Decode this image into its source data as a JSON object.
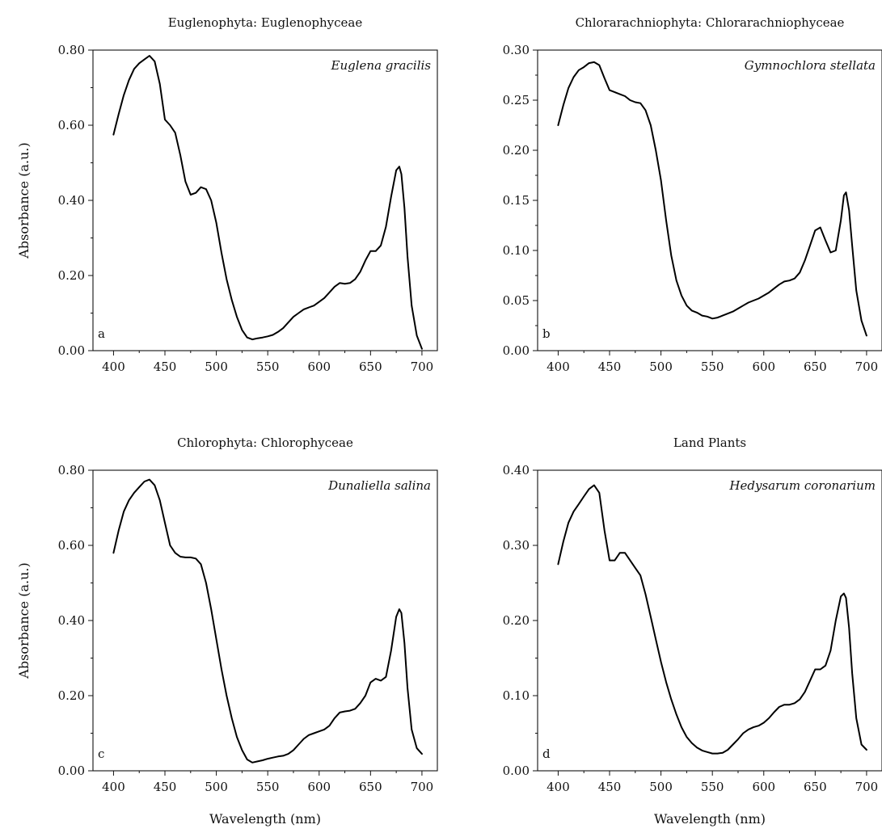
{
  "chart_data": [
    {
      "type": "line",
      "panel": "a",
      "title": "Euglenophyta: Euglenophyceae",
      "species": "Euglena gracilis",
      "xlabel": "",
      "ylabel": "Absorbance (a.u.)",
      "xlim": [
        380,
        715
      ],
      "ylim": [
        0.0,
        0.8
      ],
      "xticks": [
        "400",
        "450",
        "500",
        "550",
        "600",
        "650",
        "700"
      ],
      "yticks": [
        "0.00",
        "0.20",
        "0.40",
        "0.60",
        "0.80"
      ],
      "series": [
        {
          "x": [
            400,
            405,
            410,
            415,
            420,
            425,
            430,
            435,
            440,
            445,
            450,
            455,
            460,
            465,
            470,
            475,
            480,
            485,
            490,
            495,
            500,
            505,
            510,
            515,
            520,
            525,
            530,
            535,
            540,
            545,
            550,
            555,
            560,
            565,
            570,
            575,
            580,
            585,
            590,
            595,
            600,
            605,
            610,
            615,
            620,
            625,
            630,
            635,
            640,
            645,
            650,
            655,
            660,
            665,
            670,
            675,
            678,
            680,
            683,
            686,
            690,
            695,
            700
          ],
          "y": [
            0.575,
            0.63,
            0.68,
            0.72,
            0.75,
            0.765,
            0.775,
            0.785,
            0.77,
            0.71,
            0.615,
            0.6,
            0.58,
            0.52,
            0.45,
            0.415,
            0.42,
            0.435,
            0.43,
            0.4,
            0.34,
            0.26,
            0.19,
            0.135,
            0.09,
            0.055,
            0.035,
            0.03,
            0.033,
            0.035,
            0.038,
            0.042,
            0.05,
            0.06,
            0.075,
            0.09,
            0.1,
            0.11,
            0.115,
            0.12,
            0.13,
            0.14,
            0.155,
            0.17,
            0.18,
            0.178,
            0.18,
            0.19,
            0.21,
            0.24,
            0.265,
            0.265,
            0.28,
            0.33,
            0.41,
            0.48,
            0.49,
            0.47,
            0.38,
            0.25,
            0.12,
            0.04,
            0.005
          ]
        }
      ]
    },
    {
      "type": "line",
      "panel": "b",
      "title": "Chlorarachniophyta: Chlorarachniophyceae",
      "species": "Gymnochlora stellata",
      "xlabel": "",
      "ylabel": "",
      "xlim": [
        380,
        715
      ],
      "ylim": [
        0.0,
        0.3
      ],
      "xticks": [
        "400",
        "450",
        "500",
        "550",
        "600",
        "650",
        "700"
      ],
      "yticks": [
        "0.00",
        "0.05",
        "0.10",
        "0.15",
        "0.20",
        "0.25",
        "0.30"
      ],
      "series": [
        {
          "x": [
            400,
            405,
            410,
            415,
            420,
            425,
            430,
            435,
            440,
            445,
            450,
            455,
            460,
            465,
            470,
            475,
            480,
            485,
            490,
            495,
            500,
            505,
            510,
            515,
            520,
            525,
            530,
            535,
            540,
            545,
            550,
            555,
            560,
            565,
            570,
            575,
            580,
            585,
            590,
            595,
            600,
            605,
            610,
            615,
            620,
            625,
            630,
            635,
            640,
            645,
            650,
            655,
            660,
            665,
            670,
            675,
            678,
            680,
            683,
            686,
            690,
            695,
            700
          ],
          "y": [
            0.225,
            0.245,
            0.262,
            0.273,
            0.28,
            0.283,
            0.287,
            0.288,
            0.285,
            0.272,
            0.26,
            0.258,
            0.256,
            0.254,
            0.25,
            0.248,
            0.247,
            0.24,
            0.225,
            0.2,
            0.17,
            0.13,
            0.095,
            0.07,
            0.055,
            0.045,
            0.04,
            0.038,
            0.035,
            0.034,
            0.032,
            0.033,
            0.035,
            0.037,
            0.039,
            0.042,
            0.045,
            0.048,
            0.05,
            0.052,
            0.055,
            0.058,
            0.062,
            0.066,
            0.069,
            0.07,
            0.072,
            0.078,
            0.09,
            0.105,
            0.12,
            0.123,
            0.11,
            0.098,
            0.1,
            0.13,
            0.155,
            0.158,
            0.14,
            0.105,
            0.06,
            0.03,
            0.015
          ]
        }
      ]
    },
    {
      "type": "line",
      "panel": "c",
      "title": "Chlorophyta: Chlorophyceae",
      "species": "Dunaliella salina",
      "xlabel": "Wavelength (nm)",
      "ylabel": "Absorbance (a.u.)",
      "xlim": [
        380,
        715
      ],
      "ylim": [
        0.0,
        0.8
      ],
      "xticks": [
        "400",
        "450",
        "500",
        "550",
        "600",
        "650",
        "700"
      ],
      "yticks": [
        "0.00",
        "0.20",
        "0.40",
        "0.60",
        "0.80"
      ],
      "series": [
        {
          "x": [
            400,
            405,
            410,
            415,
            420,
            425,
            430,
            435,
            440,
            445,
            450,
            455,
            460,
            465,
            470,
            475,
            480,
            485,
            490,
            495,
            500,
            505,
            510,
            515,
            520,
            525,
            530,
            535,
            540,
            545,
            550,
            555,
            560,
            565,
            570,
            575,
            580,
            585,
            590,
            595,
            600,
            605,
            610,
            615,
            620,
            625,
            630,
            635,
            640,
            645,
            650,
            655,
            660,
            665,
            670,
            675,
            678,
            680,
            683,
            686,
            690,
            695,
            700
          ],
          "y": [
            0.58,
            0.64,
            0.69,
            0.72,
            0.74,
            0.755,
            0.77,
            0.775,
            0.76,
            0.72,
            0.66,
            0.6,
            0.58,
            0.57,
            0.568,
            0.568,
            0.565,
            0.55,
            0.5,
            0.43,
            0.35,
            0.27,
            0.2,
            0.14,
            0.09,
            0.055,
            0.03,
            0.022,
            0.025,
            0.028,
            0.032,
            0.035,
            0.038,
            0.04,
            0.045,
            0.055,
            0.07,
            0.085,
            0.095,
            0.1,
            0.105,
            0.11,
            0.12,
            0.14,
            0.155,
            0.158,
            0.16,
            0.165,
            0.18,
            0.2,
            0.235,
            0.245,
            0.24,
            0.25,
            0.32,
            0.41,
            0.43,
            0.42,
            0.34,
            0.22,
            0.11,
            0.06,
            0.045
          ]
        }
      ]
    },
    {
      "type": "line",
      "panel": "d",
      "title": "Land Plants",
      "species": "Hedysarum coronarium",
      "xlabel": "Wavelength (nm)",
      "ylabel": "",
      "xlim": [
        380,
        715
      ],
      "ylim": [
        0.0,
        0.4
      ],
      "xticks": [
        "400",
        "450",
        "500",
        "550",
        "600",
        "650",
        "700"
      ],
      "yticks": [
        "0.00",
        "0.10",
        "0.20",
        "0.30",
        "0.40"
      ],
      "series": [
        {
          "x": [
            400,
            405,
            410,
            415,
            420,
            425,
            430,
            435,
            440,
            445,
            450,
            455,
            460,
            465,
            470,
            475,
            480,
            485,
            490,
            495,
            500,
            505,
            510,
            515,
            520,
            525,
            530,
            535,
            540,
            545,
            550,
            555,
            560,
            565,
            570,
            575,
            580,
            585,
            590,
            595,
            600,
            605,
            610,
            615,
            620,
            625,
            630,
            635,
            640,
            645,
            650,
            655,
            660,
            665,
            670,
            675,
            678,
            680,
            683,
            686,
            690,
            695,
            700
          ],
          "y": [
            0.275,
            0.305,
            0.33,
            0.345,
            0.355,
            0.365,
            0.375,
            0.38,
            0.37,
            0.32,
            0.28,
            0.28,
            0.29,
            0.29,
            0.28,
            0.27,
            0.26,
            0.235,
            0.205,
            0.175,
            0.145,
            0.118,
            0.095,
            0.075,
            0.058,
            0.045,
            0.037,
            0.031,
            0.027,
            0.025,
            0.023,
            0.023,
            0.024,
            0.028,
            0.035,
            0.042,
            0.05,
            0.055,
            0.058,
            0.06,
            0.064,
            0.07,
            0.078,
            0.085,
            0.088,
            0.088,
            0.09,
            0.095,
            0.105,
            0.12,
            0.135,
            0.135,
            0.14,
            0.16,
            0.2,
            0.232,
            0.236,
            0.23,
            0.19,
            0.13,
            0.07,
            0.035,
            0.028
          ]
        }
      ]
    }
  ]
}
